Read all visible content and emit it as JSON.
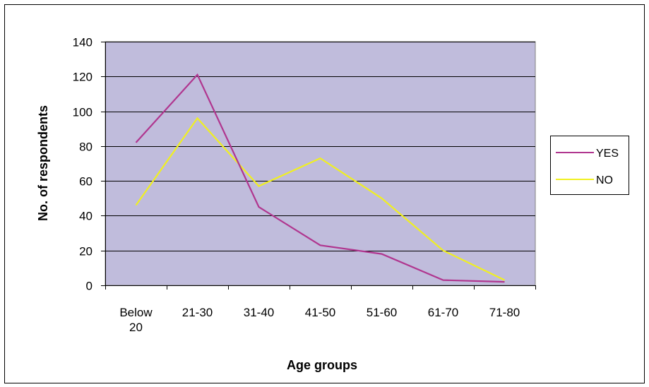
{
  "chart_data": {
    "type": "line",
    "title": "",
    "xlabel": "Age groups",
    "ylabel": "No. of respondents",
    "categories": [
      [
        "Below",
        "20"
      ],
      [
        "21-30"
      ],
      [
        "31-40"
      ],
      [
        "41-50"
      ],
      [
        "51-60"
      ],
      [
        "61-70"
      ],
      [
        "71-80"
      ]
    ],
    "ylim": [
      0,
      140
    ],
    "yticks": [
      0,
      20,
      40,
      60,
      80,
      100,
      120,
      140
    ],
    "grid": true,
    "legend_position": "right",
    "plot_background": "#c0bcdc",
    "series": [
      {
        "name": "YES",
        "color": "#b0368f",
        "values": [
          82,
          121,
          45,
          23,
          18,
          3,
          2
        ]
      },
      {
        "name": "NO",
        "color": "#f0f020",
        "values": [
          46,
          96,
          57,
          73,
          50,
          20,
          3
        ]
      }
    ]
  },
  "labels": {
    "xlabel": "Age groups",
    "ylabel": "No. of respondents",
    "legend_yes": "YES",
    "legend_no": "NO"
  }
}
